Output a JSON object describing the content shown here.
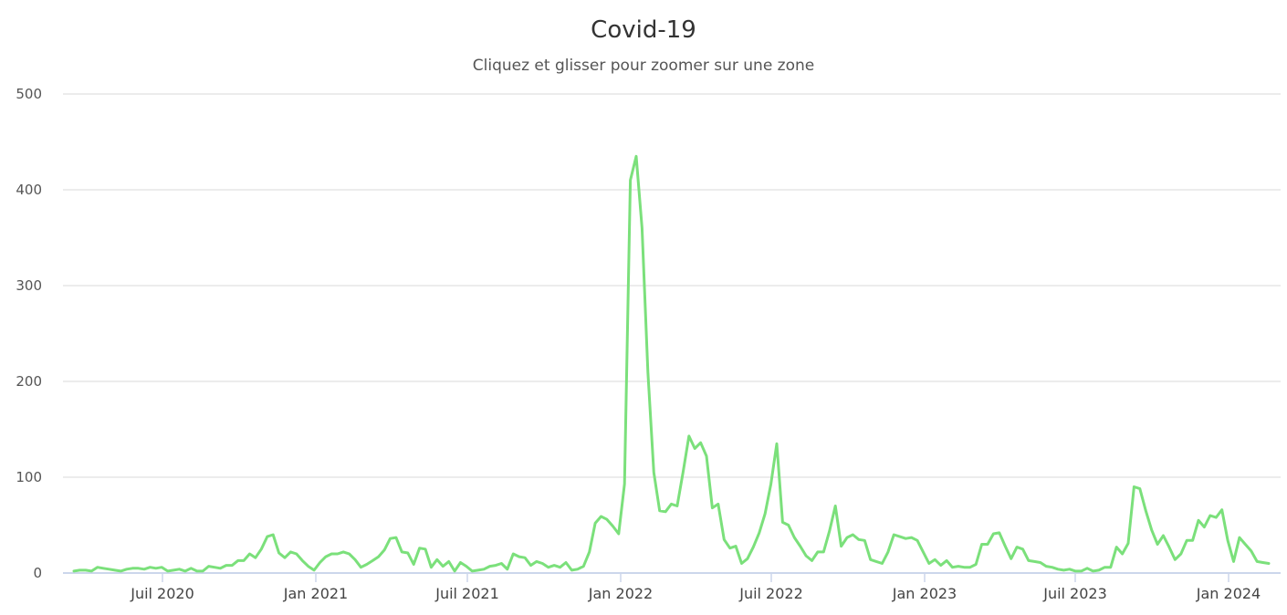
{
  "chart_data": {
    "type": "line",
    "title": "Covid-19",
    "subtitle": "Cliquez et glisser pour zoomer sur une zone",
    "xlabel": "",
    "ylabel": "",
    "ylim": [
      0,
      500
    ],
    "yticks": [
      0,
      100,
      200,
      300,
      400,
      500
    ],
    "xticks": [
      "Juil 2020",
      "Jan 2021",
      "Juil 2021",
      "Jan 2022",
      "Juil 2022",
      "Jan 2023",
      "Juil 2023",
      "Jan 2024"
    ],
    "grid": true,
    "legend": "none",
    "line_color": "#7be07b",
    "x_start": "2020-03 (weekly)",
    "series": [
      {
        "name": "Covid-19",
        "values": [
          2,
          3,
          3,
          2,
          6,
          5,
          4,
          3,
          2,
          4,
          5,
          5,
          4,
          6,
          5,
          6,
          2,
          3,
          4,
          2,
          5,
          2,
          2,
          7,
          6,
          5,
          8,
          8,
          13,
          13,
          20,
          16,
          25,
          38,
          40,
          21,
          16,
          22,
          20,
          13,
          7,
          3,
          11,
          17,
          20,
          20,
          22,
          20,
          14,
          6,
          9,
          13,
          17,
          24,
          36,
          37,
          22,
          21,
          9,
          26,
          25,
          6,
          14,
          7,
          12,
          2,
          11,
          7,
          2,
          3,
          4,
          7,
          8,
          10,
          4,
          20,
          17,
          16,
          8,
          12,
          10,
          6,
          8,
          6,
          11,
          3,
          4,
          7,
          22,
          52,
          59,
          56,
          49,
          41,
          93,
          410,
          435,
          360,
          210,
          105,
          65,
          64,
          72,
          70,
          105,
          143,
          130,
          136,
          122,
          68,
          72,
          35,
          26,
          28,
          10,
          15,
          27,
          42,
          62,
          93,
          135,
          53,
          50,
          37,
          28,
          18,
          13,
          22,
          22,
          44,
          70,
          28,
          37,
          40,
          35,
          34,
          14,
          12,
          10,
          22,
          40,
          38,
          36,
          37,
          34,
          22,
          10,
          14,
          8,
          13,
          6,
          7,
          6,
          6,
          9,
          30,
          30,
          41,
          42,
          28,
          15,
          27,
          25,
          13,
          12,
          11,
          7,
          6,
          4,
          3,
          4,
          2,
          2,
          5,
          2,
          3,
          6,
          6,
          27,
          20,
          31,
          90,
          88,
          65,
          45,
          30,
          39,
          27,
          14,
          20,
          34,
          34,
          55,
          48,
          60,
          58,
          66,
          34,
          12,
          37,
          30,
          23,
          12,
          11,
          10
        ]
      }
    ]
  },
  "axis": {
    "y_labels": [
      "0",
      "100",
      "200",
      "300",
      "400",
      "500"
    ],
    "x_labels": [
      "Juil 2020",
      "Jan 2021",
      "Juil 2021",
      "Jan 2022",
      "Juil 2022",
      "Jan 2023",
      "Juil 2023",
      "Jan 2024"
    ]
  }
}
